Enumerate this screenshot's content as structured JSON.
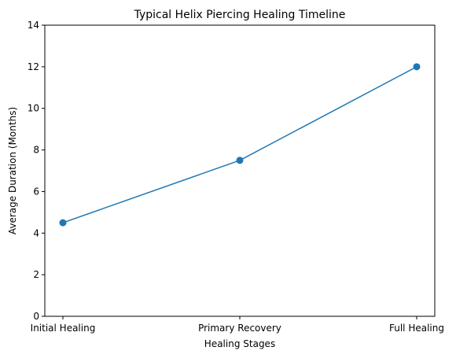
{
  "chart_data": {
    "type": "line",
    "title": "Typical Helix Piercing Healing Timeline",
    "xlabel": "Healing Stages",
    "ylabel": "Average Duration (Months)",
    "categories": [
      "Initial Healing",
      "Primary Recovery",
      "Full Healing"
    ],
    "series": [
      {
        "name": "",
        "values": [
          4.5,
          7.5,
          12
        ],
        "color": "#1f77b4",
        "marker": "circle"
      }
    ],
    "ylim": [
      0,
      14
    ],
    "yticks": [
      0,
      2,
      4,
      6,
      8,
      10,
      12,
      14
    ],
    "grid": false,
    "legend": "none"
  }
}
